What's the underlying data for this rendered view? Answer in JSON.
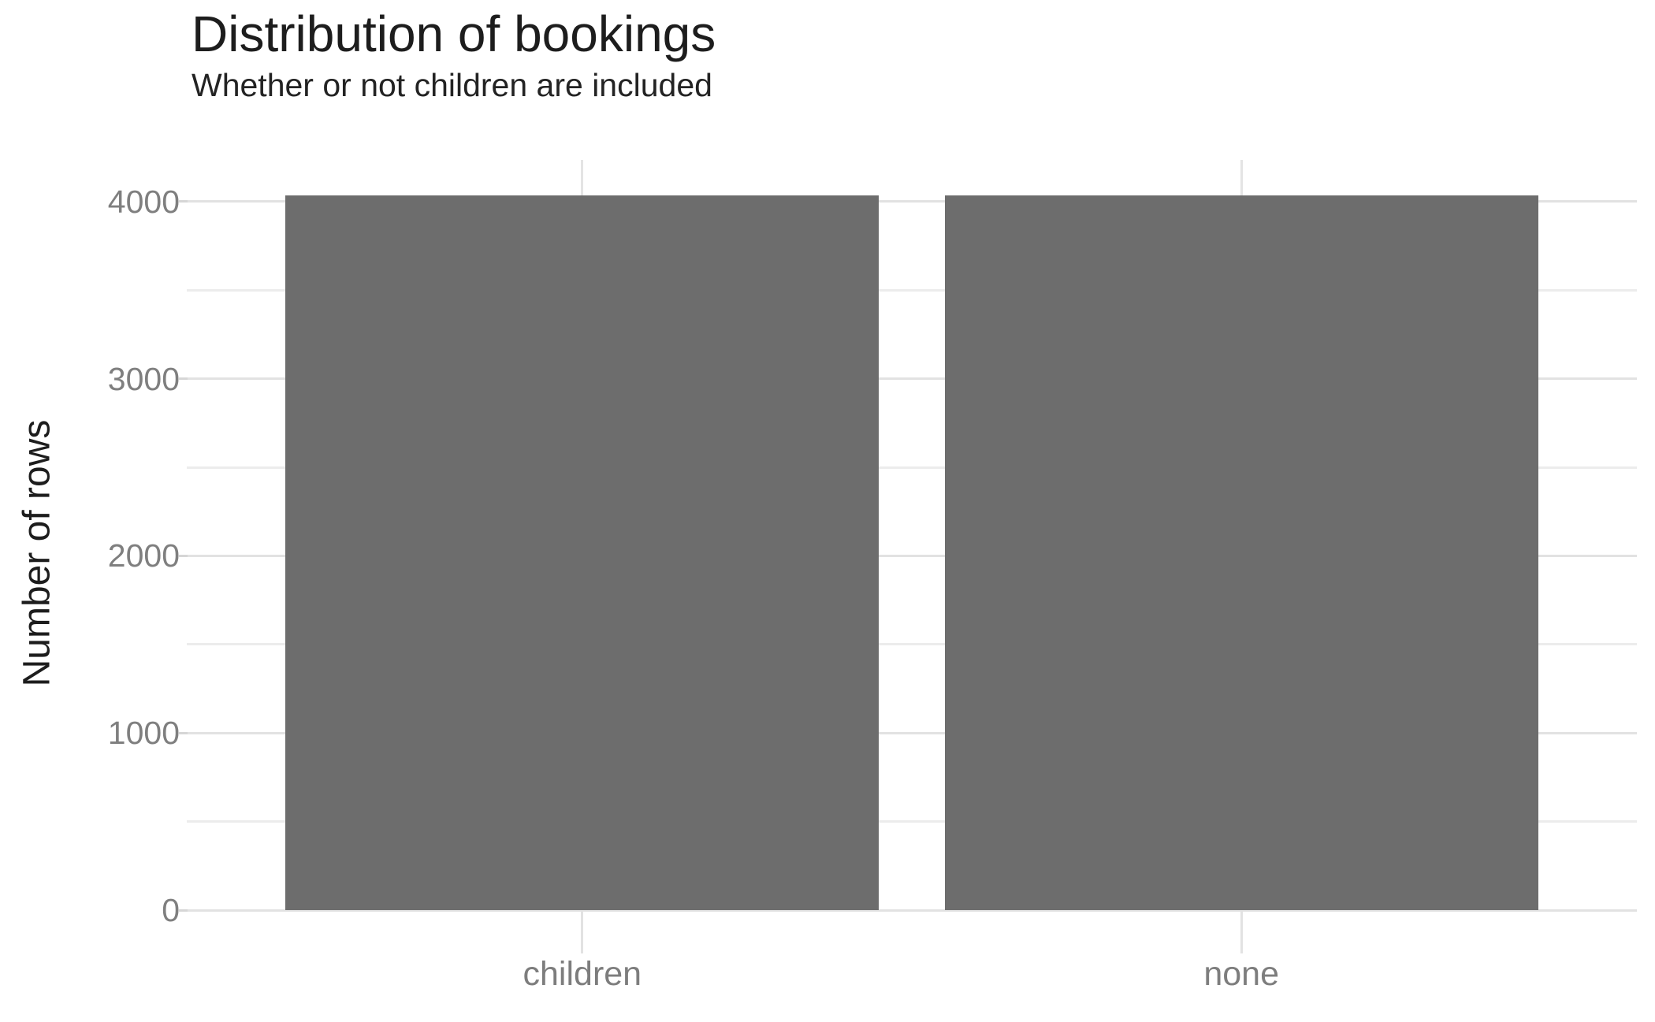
{
  "chart": {
    "title": "Distribution of bookings",
    "subtitle": "Whether or not children are included",
    "y_axis_title": "Number of rows"
  },
  "chart_data": {
    "type": "bar",
    "title": "Distribution of bookings",
    "subtitle": "Whether or not children are included",
    "xlabel": "",
    "ylabel": "Number of rows",
    "categories": [
      "children",
      "none"
    ],
    "values": [
      4033,
      4033
    ],
    "yticks": [
      0,
      1000,
      2000,
      3000,
      4000
    ],
    "yticks_minor": [
      500,
      1500,
      2500,
      3500
    ],
    "ylim": [
      0,
      4235
    ],
    "grid": "horizontal major and minor lines plus vertical line at each category center, light gray on white",
    "legend": "none",
    "bar_width_fraction": 0.9,
    "colors": {
      "bar": "#6d6d6d",
      "grid_major": "#e2e2e2",
      "grid_minor": "#ececec",
      "grid_vertical": "#e4e4e4",
      "axis_tick": "#d6d6d6",
      "tick_label": "#7f7f7f",
      "title": "#1d1d1d",
      "background": "#ffffff"
    }
  }
}
